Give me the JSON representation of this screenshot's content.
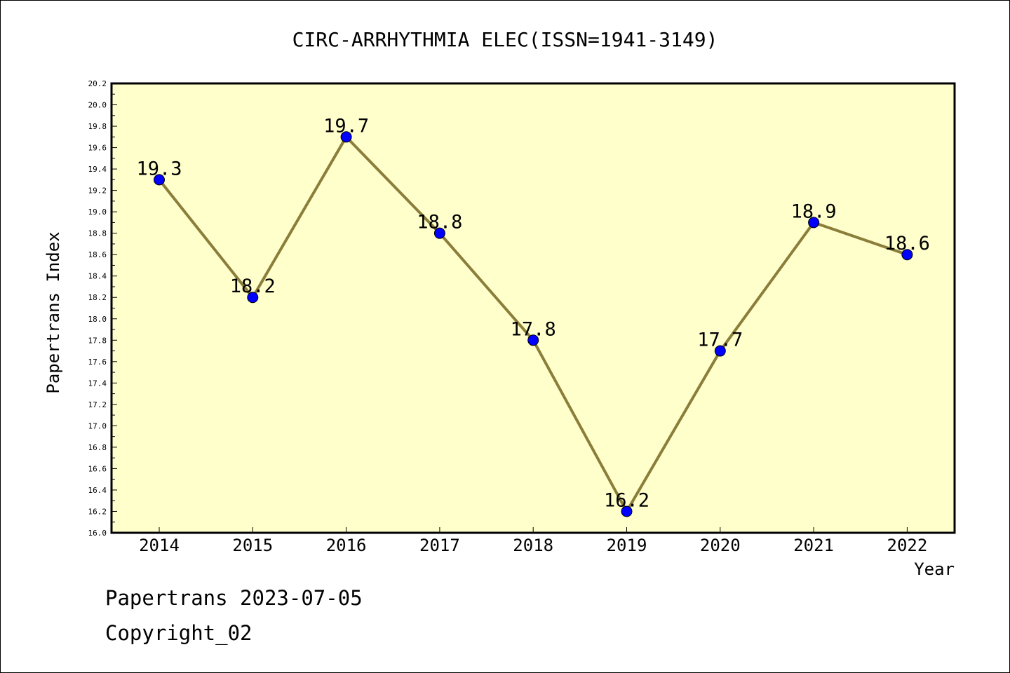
{
  "footer": {
    "date_line": "Papertrans 2023-07-05",
    "copyright_line": "Copyright_02"
  },
  "colors": {
    "plot_background": "#ffffcc",
    "line": "#8b7d3a",
    "marker": "#0000ff",
    "axes": "#000000"
  },
  "chart_data": {
    "type": "line",
    "title": "CIRC-ARRHYTHMIA ELEC(ISSN=1941-3149)",
    "xlabel": "Year",
    "ylabel": "Papertrans Index",
    "categories": [
      "2014",
      "2015",
      "2016",
      "2017",
      "2018",
      "2019",
      "2020",
      "2021",
      "2022"
    ],
    "series": [
      {
        "values": [
          19.3,
          18.2,
          19.7,
          18.8,
          17.8,
          16.2,
          17.7,
          18.9,
          18.6
        ],
        "data_labels": [
          "19.3",
          "18.2",
          "19.7",
          "18.8",
          "17.8",
          "16.2",
          "17.7",
          "18.9",
          "18.6"
        ]
      }
    ],
    "ylim": [
      16.0,
      20.2
    ],
    "y_ticks": [
      "16.0",
      "16.2",
      "16.4",
      "16.6",
      "16.8",
      "17.0",
      "17.2",
      "17.4",
      "17.6",
      "17.8",
      "18.0",
      "18.2",
      "18.4",
      "18.6",
      "18.8",
      "19.0",
      "19.2",
      "19.4",
      "19.6",
      "19.8",
      "20.0",
      "20.2"
    ],
    "grid": false,
    "legend": "none"
  }
}
